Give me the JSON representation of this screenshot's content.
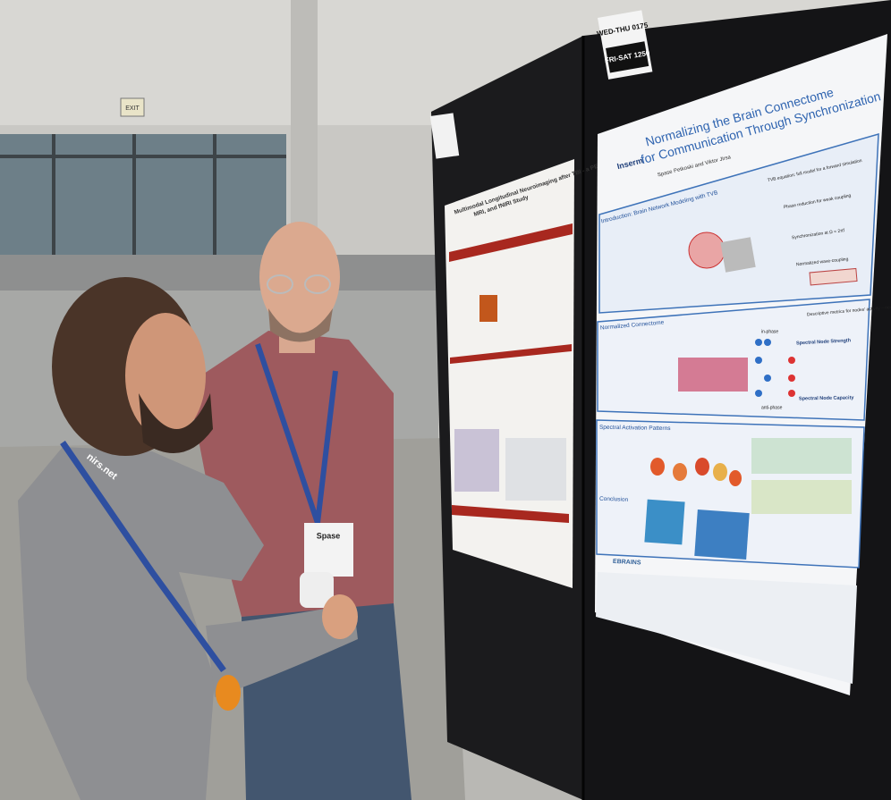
{
  "signs": {
    "exit": "EXIT",
    "board_top": "WED-THU 0175",
    "board_bottom": "FRI-SAT 1250"
  },
  "poster_right": {
    "title": [
      "Normalizing the Brain Connectome",
      "for Communication Through Synchronization"
    ],
    "institution": "Inserm",
    "authors": "Spase Petkoski and Viktor Jirsa",
    "sections": [
      "Introduction: Brain Network Modeling with TVB",
      "Normalized Connectome",
      "Spectral Activation Patterns",
      "Conclusion"
    ],
    "equations": [
      "TVB equation: full model for a forward simulation",
      "Phase reduction for weak coupling",
      "Synchronization at Ω = 2πf",
      "Normalized wave-coupling"
    ],
    "metrics": [
      "Descriptive metrics for nodes' activity – new graph theory",
      "Spectral Node Strength",
      "Spectral Node Capacity"
    ],
    "phase_labels": [
      "in-phase",
      "anti-phase"
    ],
    "logo": "EBRAINS"
  },
  "poster_left": {
    "title": [
      "Multimodal Longitudinal Neuroimaging after TBI - a PET,",
      "MRI, and fNIRI Study"
    ]
  },
  "lanyard": "nirs.net",
  "badge": "Spase"
}
